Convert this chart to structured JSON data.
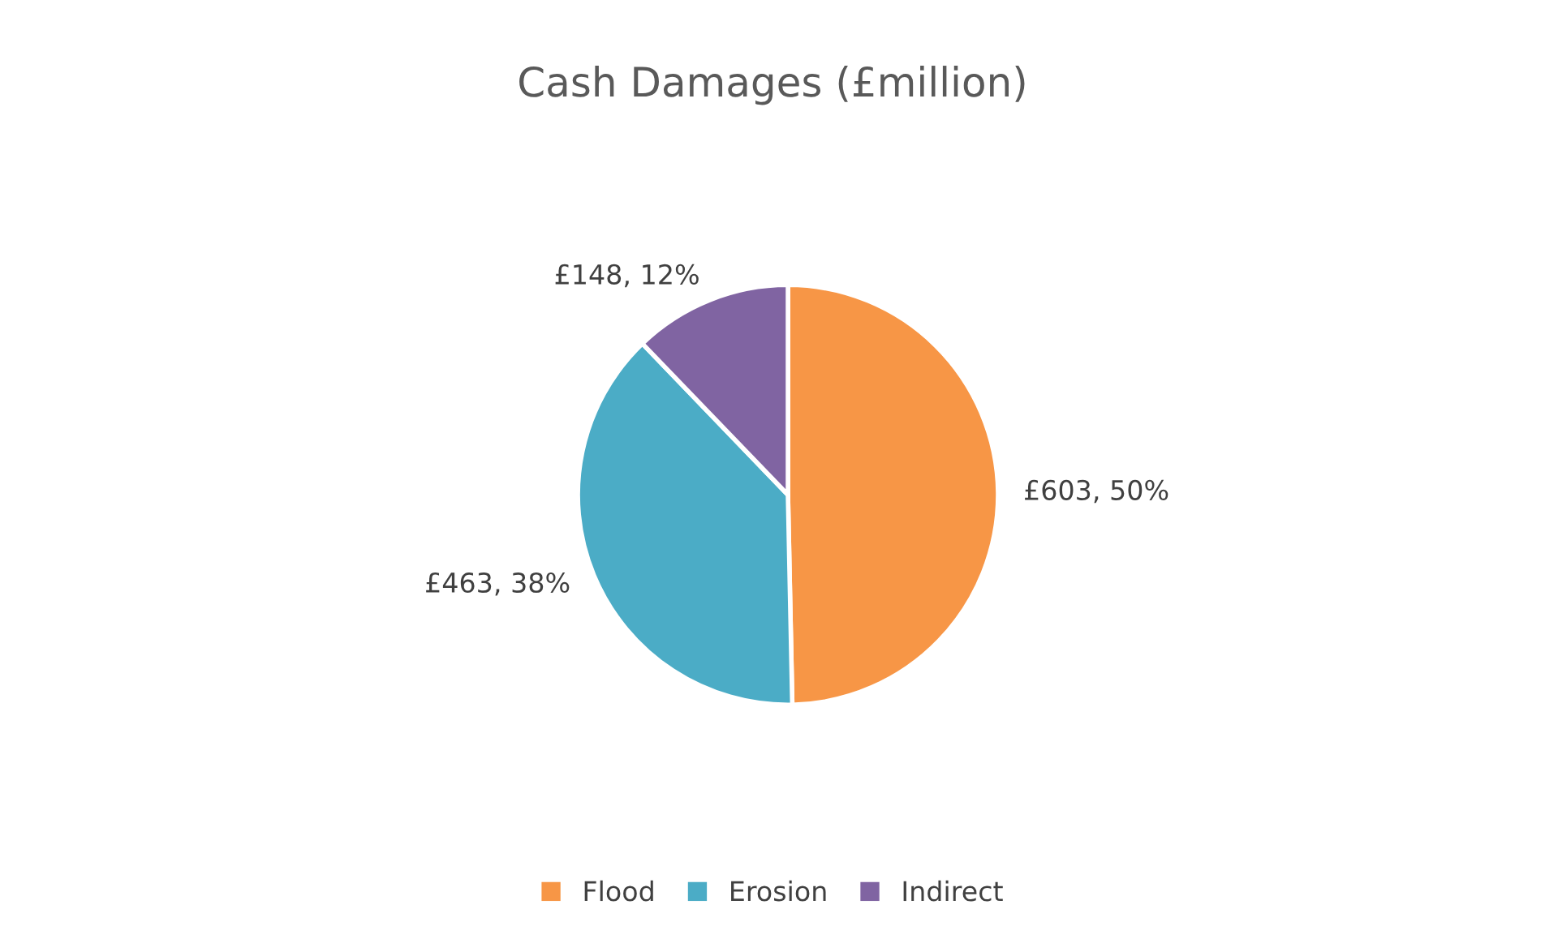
{
  "chart_data": {
    "type": "pie",
    "title": "Cash Damages (£million)",
    "categories": [
      "Flood",
      "Erosion",
      "Indirect"
    ],
    "values": [
      603,
      463,
      148
    ],
    "colors": [
      "#f79646",
      "#4bacc6",
      "#8064a2"
    ],
    "value_labels": [
      "£603, 50%",
      "£463, 38%",
      "£148, 12%"
    ],
    "legend": "bottom"
  }
}
